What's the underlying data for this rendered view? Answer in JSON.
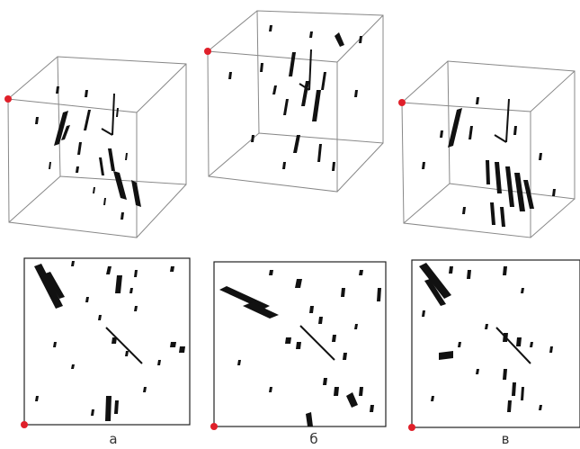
{
  "captions": {
    "a": "а",
    "b": "б",
    "c": "в"
  },
  "colors": {
    "ink": "#111111",
    "frame": "#777777",
    "frame_dark": "#222222",
    "origin_marker": "#e0202a"
  },
  "panels_3d": [
    {
      "id": "a",
      "name": "cube-view-a"
    },
    {
      "id": "b",
      "name": "cube-view-b"
    },
    {
      "id": "c",
      "name": "cube-view-c"
    }
  ],
  "panels_2d": [
    {
      "id": "a",
      "name": "projection-view-a"
    },
    {
      "id": "b",
      "name": "projection-view-b"
    },
    {
      "id": "c",
      "name": "projection-view-c"
    }
  ]
}
